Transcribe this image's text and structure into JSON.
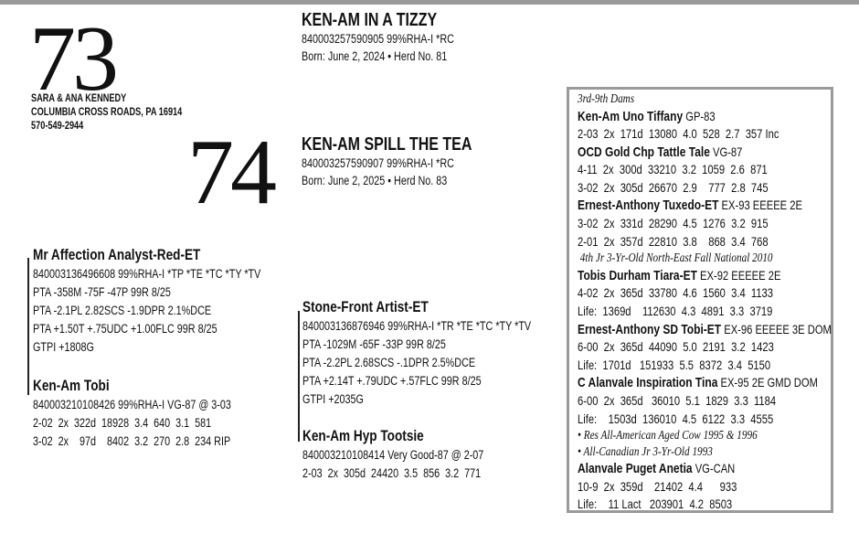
{
  "lot73": {
    "number": "73",
    "name": "KEN-AM IN A TIZZY",
    "id_line": "840003257590905 99%RHA-I *RC",
    "born_line": "Born:  June 2, 2024 • Herd No. 81"
  },
  "consignor": {
    "name": "SARA & ANA KENNEDY",
    "address": "COLUMBIA CROSS ROADS, PA 16914",
    "phone": "570-549-2944"
  },
  "lot74": {
    "number": "74",
    "name": "KEN-AM SPILL THE TEA",
    "id_line": "840003257590907 99%RHA-I *RC",
    "born_line": "Born:  June 2, 2025 • Herd No. 83"
  },
  "pedigree73": {
    "sire": {
      "name": "Mr Affection Analyst-Red-ET",
      "lines": [
        "840003136496608 99%RHA-I *TP *TE *TC *TY *TV",
        "PTA -358M -75F -47P 99R 8/25",
        "PTA -2.1PL 2.82SCS -1.9DPR 2.1%DCE",
        "PTA +1.50T +.75UDC +1.00FLC 99R 8/25",
        "GTPI +1808G"
      ]
    },
    "dam": {
      "name": "Ken-Am Tobi",
      "lines": [
        "840003210108426 99%RHA-I VG-87 @ 3-03",
        "2-02  2x  322d  18928  3.4  640  3.1  581",
        "3-02  2x    97d    8402  3.2  270  2.8  234 RIP"
      ]
    }
  },
  "pedigree74": {
    "sire": {
      "name": "Stone-Front Artist-ET",
      "lines": [
        "840003136876946 99%RHA-I *TR *TE *TC *TY *TV",
        "PTA -1029M -65F -33P 99R 8/25",
        "PTA -2.2PL 2.68SCS -.1DPR 2.5%DCE",
        "PTA +2.14T +.79UDC +.57FLC 99R 8/25",
        "GTPI +2035G"
      ]
    },
    "dam": {
      "name": "Ken-Am Hyp Tootsie",
      "lines": [
        "840003210108414 Very Good-87 @ 2-07",
        "2-03  2x  305d  24420  3.5  856  3.2  771"
      ]
    }
  },
  "dams_box": {
    "heading": "3rd-9th Dams",
    "lines": [
      {
        "type": "name",
        "name": "Ken-Am Uno Tiffany",
        "rating": " GP-83"
      },
      {
        "type": "rec",
        "text": "2-03  2x  171d  13080  4.0  528  2.7  357 Inc"
      },
      {
        "type": "name",
        "name": "OCD Gold Chp Tattle Tale",
        "rating": " VG-87"
      },
      {
        "type": "rec",
        "text": "4-11  2x  300d  33210  3.2  1059  2.6  871"
      },
      {
        "type": "rec",
        "text": "3-02  2x  305d  26670  2.9    777  2.8  745"
      },
      {
        "type": "name",
        "name": "Ernest-Anthony Tuxedo-ET",
        "rating": " EX-93 EEEEE 2E"
      },
      {
        "type": "rec",
        "text": "3-02  2x  331d  28290  4.5  1276  3.2  915"
      },
      {
        "type": "rec",
        "text": "2-01  2x  357d  22810  3.8    868  3.4  768"
      },
      {
        "type": "note",
        "text": " 4th Jr 3-Yr-Old North-East Fall National 2010"
      },
      {
        "type": "name",
        "name": "Tobis Durham Tiara-ET",
        "rating": " EX-92 EEEEE 2E"
      },
      {
        "type": "rec",
        "text": "4-02  2x  365d  33780  4.6  1560  3.4  1133"
      },
      {
        "type": "rec",
        "text": "Life:  1369d    112630  4.3  4891  3.3  3719"
      },
      {
        "type": "name",
        "name": "Ernest-Anthony SD Tobi-ET",
        "rating": " EX-96 EEEEE 3E DOM"
      },
      {
        "type": "rec",
        "text": "6-00  2x  365d  44090  5.0  2191  3.2  1423"
      },
      {
        "type": "rec",
        "text": "Life:  1701d   151933  5.5  8372  3.4  5150"
      },
      {
        "type": "name",
        "name": "C Alanvale Inspiration Tina",
        "rating": " EX-95 2E GMD DOM"
      },
      {
        "type": "rec",
        "text": "6-00  2x  365d   36010  5.1  1829  3.3  1184"
      },
      {
        "type": "rec",
        "text": "Life:    1503d  136010  4.5  6122  3.3  4555"
      },
      {
        "type": "note",
        "text": "• Res All-American Aged Cow 1995 & 1996"
      },
      {
        "type": "note",
        "text": "• All-Canadian Jr 3-Yr-Old 1993"
      },
      {
        "type": "name",
        "name": "Alanvale Puget Anetia",
        "rating": " VG-CAN"
      },
      {
        "type": "rec",
        "text": "10-9  2x  359d    21402  4.4      933"
      },
      {
        "type": "rec",
        "text": "Life:    11 Lact   203901  4.2  8503"
      }
    ]
  }
}
